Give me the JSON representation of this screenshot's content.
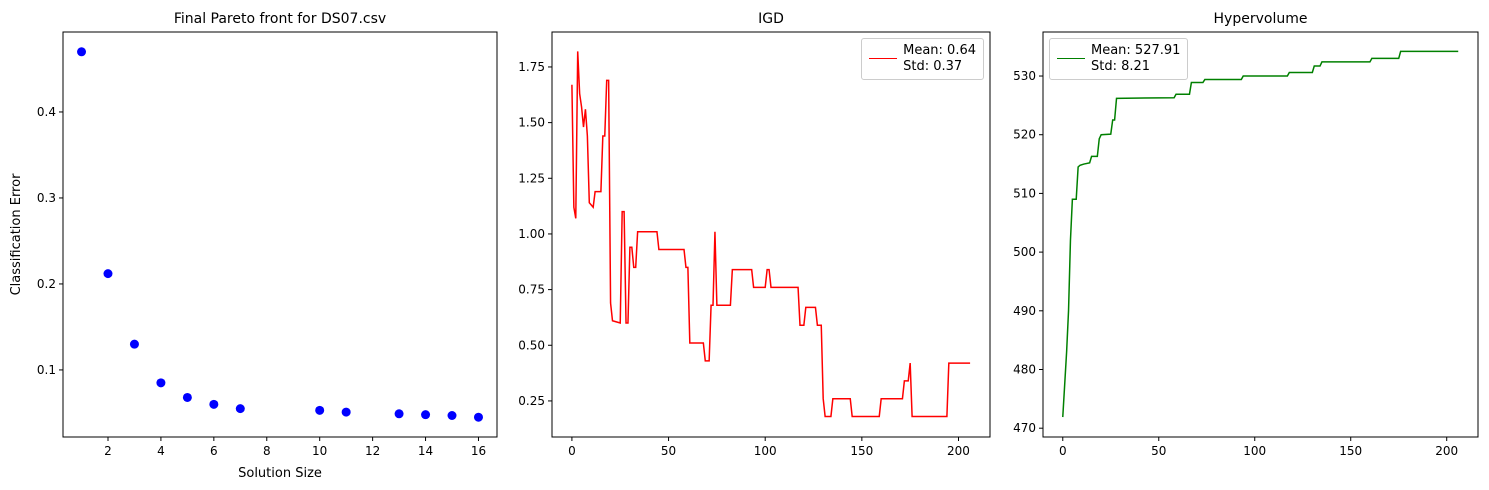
{
  "chart_data": [
    {
      "type": "scatter",
      "title": "Final Pareto front for DS07.csv",
      "xlabel": "Solution Size",
      "ylabel": "Classification Error",
      "x": [
        1,
        2,
        3,
        4,
        5,
        6,
        7,
        10,
        11,
        13,
        14,
        15,
        16
      ],
      "values": [
        0.47,
        0.212,
        0.13,
        0.085,
        0.068,
        0.06,
        0.055,
        0.053,
        0.051,
        0.049,
        0.048,
        0.047,
        0.045
      ],
      "color": "#0000ff",
      "xlim": [
        0.3,
        16.7
      ],
      "ylim": [
        0.022,
        0.493
      ],
      "xticks": [
        2,
        4,
        6,
        8,
        10,
        12,
        14,
        16
      ],
      "yticks": [
        0.1,
        0.2,
        0.3,
        0.4
      ]
    },
    {
      "type": "line",
      "title": "IGD",
      "legend": "upper right",
      "x": [
        0,
        1,
        2,
        3,
        4,
        5,
        6,
        7,
        8,
        9,
        11,
        12,
        15,
        16,
        17,
        18,
        19,
        20,
        21,
        25,
        26,
        27,
        28,
        29,
        30,
        31,
        32,
        33,
        34,
        44,
        45,
        58,
        59,
        60,
        61,
        68,
        69,
        71,
        72,
        73,
        74,
        75,
        82,
        83,
        93,
        94,
        100,
        101,
        102,
        103,
        117,
        118,
        120,
        121,
        126,
        127,
        129,
        130,
        131,
        134,
        135,
        144,
        145,
        159,
        160,
        171,
        172,
        174,
        175,
        176,
        194,
        195,
        206
      ],
      "series": [
        {
          "name": "Mean: 0.64\nStd: 0.37",
          "color": "#ff0000",
          "values": [
            1.67,
            1.12,
            1.07,
            1.82,
            1.63,
            1.57,
            1.48,
            1.56,
            1.44,
            1.14,
            1.12,
            1.19,
            1.19,
            1.44,
            1.44,
            1.69,
            1.69,
            0.69,
            0.61,
            0.6,
            1.1,
            1.1,
            0.6,
            0.6,
            0.94,
            0.94,
            0.85,
            0.85,
            1.01,
            1.01,
            0.93,
            0.93,
            0.85,
            0.85,
            0.51,
            0.51,
            0.43,
            0.43,
            0.68,
            0.68,
            1.01,
            0.68,
            0.68,
            0.84,
            0.84,
            0.76,
            0.76,
            0.84,
            0.84,
            0.76,
            0.76,
            0.59,
            0.59,
            0.67,
            0.67,
            0.59,
            0.59,
            0.26,
            0.18,
            0.18,
            0.26,
            0.26,
            0.18,
            0.18,
            0.26,
            0.26,
            0.34,
            0.34,
            0.42,
            0.18,
            0.18,
            0.42,
            0.42
          ]
        }
      ],
      "xlim": [
        -10.3,
        216.3
      ],
      "ylim": [
        0.088,
        1.907
      ],
      "xticks": [
        0,
        50,
        100,
        150,
        200
      ],
      "yticks": [
        {
          "value": 0.25,
          "label": "0.25"
        },
        {
          "value": 0.5,
          "label": "0.50"
        },
        {
          "value": 0.75,
          "label": "0.75"
        },
        {
          "value": 1.0,
          "label": "1.00"
        },
        {
          "value": 1.25,
          "label": "1.25"
        },
        {
          "value": 1.5,
          "label": "1.50"
        },
        {
          "value": 1.75,
          "label": "1.75"
        }
      ]
    },
    {
      "type": "line",
      "title": "Hypervolume",
      "legend": "upper left",
      "x": [
        0,
        2,
        3,
        4,
        5,
        7,
        8,
        9,
        11,
        14,
        15,
        18,
        19,
        20,
        25,
        26,
        27,
        28,
        58,
        59,
        66,
        67,
        73,
        74,
        93,
        94,
        117,
        118,
        130,
        131,
        134,
        135,
        160,
        161,
        175,
        176,
        206
      ],
      "series": [
        {
          "name": "Mean: 527.91\nStd: 8.21",
          "color": "#008000",
          "values": [
            471.9,
            483,
            490,
            502,
            509,
            509,
            514.5,
            514.8,
            515,
            515.2,
            516.3,
            516.3,
            519.3,
            520,
            520.1,
            522.5,
            522.5,
            526.2,
            526.3,
            526.9,
            526.9,
            528.9,
            528.9,
            529.4,
            529.4,
            530,
            530,
            530.6,
            530.6,
            531.7,
            531.7,
            532.4,
            532.4,
            533,
            533,
            534.2,
            534.2
          ]
        }
      ],
      "xlim": [
        -10.3,
        216.3
      ],
      "ylim": [
        468.5,
        537.5
      ],
      "xticks": [
        0,
        50,
        100,
        150,
        200
      ],
      "yticks": [
        470,
        480,
        490,
        500,
        510,
        520,
        530
      ]
    }
  ]
}
